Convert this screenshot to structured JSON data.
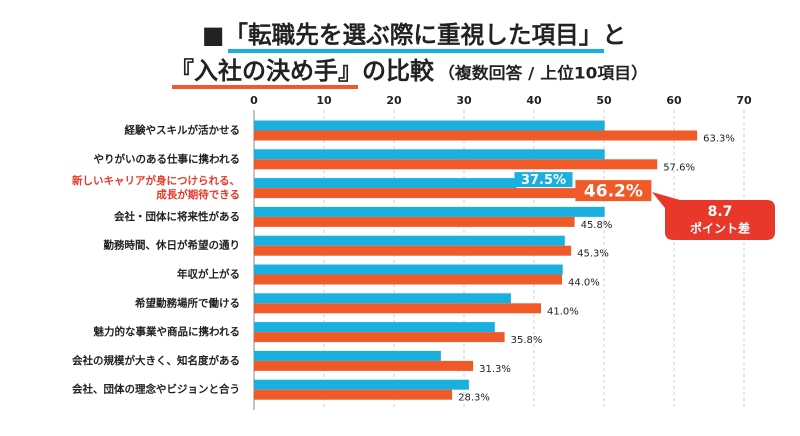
{
  "chart_data": {
    "type": "hbar",
    "title": "■「転職先を選ぶ際に重視した項目」と",
    "title2": "『入社の決め手』の比較",
    "subtitle": "（複数回答 / 上位10項目）",
    "categories": [
      "経験やスキルが活かせる",
      "やりがいのある仕事に携われる",
      "新しいキャリアが身につけられる、\n成長が期待できる",
      "会社・団体に将来性がある",
      "勤務時間、休日が希望の通り",
      "年収が上がる",
      "希望勤務場所で働ける",
      "魅力的な事業や商品に携われる",
      "会社の規模が大きく、知名度がある",
      "会社、団体の理念やビジョンと合う"
    ],
    "series": [
      {
        "color": "#19b0e0",
        "values": [
          50.1,
          50.1,
          37.5,
          50.1,
          44.4,
          44.1,
          36.7,
          34.4,
          26.7,
          30.7
        ],
        "value_labels": [
          null,
          null,
          "37.5%",
          null,
          null,
          null,
          null,
          null,
          null,
          null
        ]
      },
      {
        "color": "#f05a28",
        "values": [
          63.3,
          57.6,
          46.2,
          45.8,
          45.3,
          44.0,
          41.0,
          35.8,
          31.3,
          28.3
        ],
        "value_labels": [
          "63.3%",
          "57.6%",
          "46.2%",
          "45.8%",
          "45.3%",
          "44.0%",
          "41.0%",
          "35.8%",
          "31.3%",
          "28.3%"
        ]
      }
    ],
    "xlim": [
      0,
      70
    ],
    "xticks": [
      0,
      10,
      20,
      30,
      40,
      50,
      60,
      70
    ],
    "grid": true,
    "highlight": 2,
    "highlight_color": "#e8382a",
    "annotation": {
      "value": "8.7",
      "text": "ポイント差"
    }
  }
}
